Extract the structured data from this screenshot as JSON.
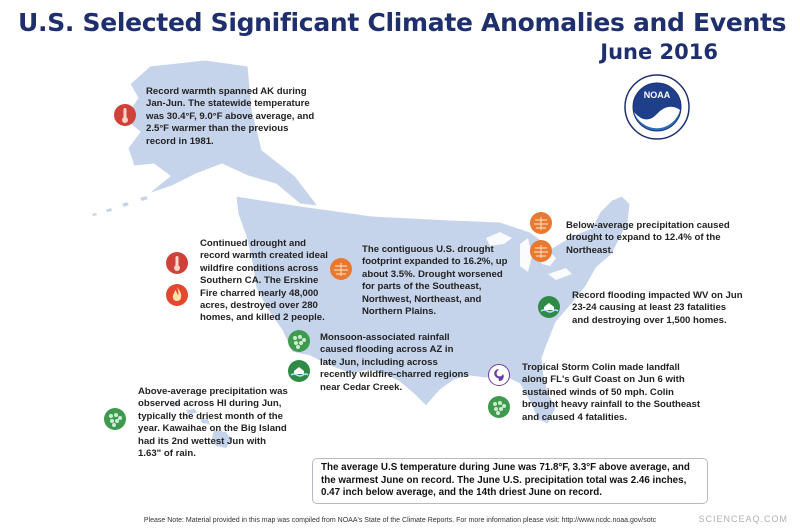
{
  "title": "U.S. Selected Significant Climate Anomalies and Events",
  "subtitle": "June 2016",
  "logo_text": "NOAA",
  "colors": {
    "title": "#1f2f6e",
    "land": "#c6d4eb",
    "warm_icon": "#d0413a",
    "fire_icon": "#e3472f",
    "drought_icon": "#e8792f",
    "rain_icon": "#3e9a4e",
    "flood_icon": "#2f8a46",
    "storm_icon": "#6a3fa0"
  },
  "events": [
    {
      "id": "alaska",
      "icons": [
        "warmth-icon"
      ],
      "text": "Record warmth spanned AK during Jan-Jun. The statewide temperature was 30.4°F, 9.0°F above average, and 2.5°F warmer than the previous record in 1981."
    },
    {
      "id": "california",
      "icons": [
        "warmth-icon",
        "wildfire-icon"
      ],
      "text": "Continued drought and record warmth created ideal wildfire conditions across Southern CA. The Erskine Fire charred nearly 48,000 acres, destroyed over 280 homes, and killed 2 people."
    },
    {
      "id": "drought",
      "icons": [
        "drought-icon"
      ],
      "text": "The contiguous U.S. drought footprint expanded to 16.2%, up about 3.5%. Drought worsened for parts of the Southeast, Northwest, Northeast, and Northern Plains."
    },
    {
      "id": "northeast",
      "icons": [
        "drought-icon",
        "drought-icon"
      ],
      "text": "Below-average precipitation caused drought to expand to 12.4% of the Northeast."
    },
    {
      "id": "westvirginia",
      "icons": [
        "flood-icon"
      ],
      "text": "Record flooding impacted WV on Jun 23-24 causing at least 23 fatalities and destroying over 1,500 homes."
    },
    {
      "id": "arizona",
      "icons": [
        "heavy-rain-icon",
        "flood-icon"
      ],
      "text": "Monsoon-associated rainfall caused flooding across AZ in late Jun, including across recently wildfire-charred regions near Cedar Creek."
    },
    {
      "id": "colin",
      "icons": [
        "tropical-storm-icon",
        "heavy-rain-icon"
      ],
      "text": "Tropical Storm Colin made landfall along FL's Gulf Coast on Jun 6 with sustained winds of 50 mph. Colin brought heavy rainfall to the Southeast and caused 4 fatalities."
    },
    {
      "id": "hawaii",
      "icons": [
        "heavy-rain-icon"
      ],
      "text": "Above-average precipitation was observed across HI during Jun, typically the driest month of the year. Kawaihae on the Big Island had its 2nd wettest Jun with 1.63\" of rain."
    }
  ],
  "summary": "The average U.S temperature during June was 71.8°F, 3.3°F above average, and the warmest June on record. The June U.S. precipitation total was 2.46 inches, 0.47 inch below average, and the 14th driest June on record.",
  "note": "Please Note: Material provided in this map was compiled from NOAA's State of the Climate Reports. For more information please visit: http://www.ncdc.noaa.gov/sotc",
  "watermark": "SCIENCEAQ.COM"
}
